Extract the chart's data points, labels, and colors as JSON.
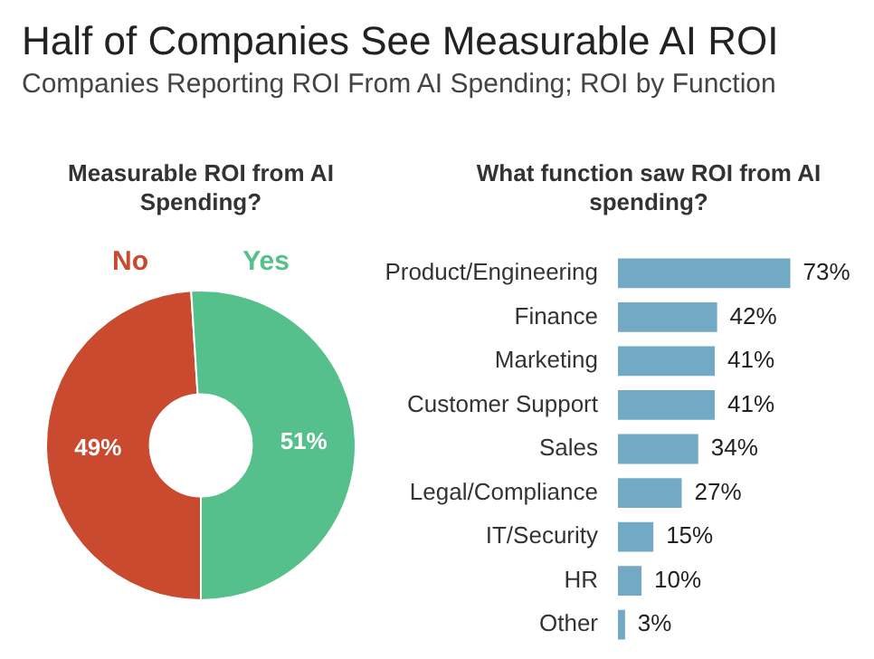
{
  "chart_data": [
    {
      "type": "donut",
      "title": "Measurable ROI from AI Spending?",
      "annotations": [
        "Half of Companies See Measurable AI ROI",
        "Companies Reporting ROI From AI Spending; ROI by Function"
      ],
      "categories": [
        "No",
        "Yes"
      ],
      "values": [
        49,
        51
      ],
      "colors": [
        "#c94a2e",
        "#55c08c"
      ],
      "value_labels": [
        "49%",
        "51%"
      ]
    },
    {
      "type": "bar",
      "orientation": "horizontal",
      "title": "What function saw ROI from AI spending?",
      "categories": [
        "Product/Engineering",
        "Finance",
        "Marketing",
        "Customer Support",
        "Sales",
        "Legal/Compliance",
        "IT/Security",
        "HR",
        "Other"
      ],
      "values": [
        73,
        42,
        41,
        41,
        34,
        27,
        15,
        10,
        3
      ],
      "color": "#72aac6",
      "value_labels": [
        "73%",
        "42%",
        "41%",
        "41%",
        "34%",
        "27%",
        "15%",
        "10%",
        "3%"
      ],
      "tick_labels": "y"
    }
  ]
}
